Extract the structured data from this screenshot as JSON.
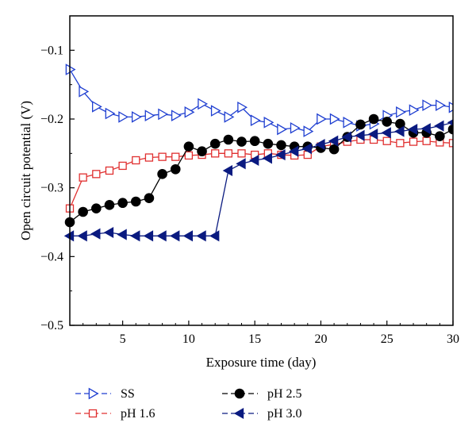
{
  "chart_data": {
    "type": "line",
    "xlabel": "Exposure time (day)",
    "ylabel": "Open circuit potential (V)",
    "xlim": [
      1,
      30
    ],
    "ylim": [
      -0.5,
      -0.05
    ],
    "xticks": [
      5,
      10,
      15,
      20,
      25,
      30
    ],
    "yticks": [
      -0.5,
      -0.4,
      -0.3,
      -0.2,
      -0.1
    ],
    "ytick_labels": [
      "−0.5",
      "−0.4",
      "−0.3",
      "−0.2",
      "−0.1"
    ],
    "grid": false,
    "legend_position": "below plot",
    "series": [
      {
        "name": "SS",
        "marker": "triangle-right-open",
        "color": "#1f3fd1",
        "x": [
          1,
          2,
          3,
          4,
          5,
          6,
          7,
          8,
          9,
          10,
          11,
          12,
          13,
          14,
          15,
          16,
          17,
          18,
          19,
          20,
          21,
          22,
          23,
          24,
          25,
          26,
          27,
          28,
          29,
          30
        ],
        "y": [
          -0.128,
          -0.16,
          -0.182,
          -0.192,
          -0.197,
          -0.197,
          -0.195,
          -0.193,
          -0.195,
          -0.19,
          -0.178,
          -0.188,
          -0.197,
          -0.183,
          -0.202,
          -0.205,
          -0.215,
          -0.213,
          -0.218,
          -0.2,
          -0.2,
          -0.205,
          -0.21,
          -0.207,
          -0.195,
          -0.19,
          -0.187,
          -0.18,
          -0.18,
          -0.183
        ]
      },
      {
        "name": "pH 1.6",
        "marker": "square-open",
        "color": "#e03030",
        "x": [
          1,
          2,
          3,
          4,
          5,
          6,
          7,
          8,
          9,
          10,
          11,
          12,
          13,
          14,
          15,
          16,
          17,
          18,
          19,
          20,
          21,
          22,
          23,
          24,
          25,
          26,
          27,
          28,
          29,
          30
        ],
        "y": [
          -0.33,
          -0.285,
          -0.28,
          -0.275,
          -0.268,
          -0.26,
          -0.256,
          -0.255,
          -0.255,
          -0.253,
          -0.252,
          -0.25,
          -0.25,
          -0.25,
          -0.252,
          -0.25,
          -0.252,
          -0.253,
          -0.252,
          -0.24,
          -0.237,
          -0.233,
          -0.23,
          -0.23,
          -0.232,
          -0.235,
          -0.233,
          -0.232,
          -0.234,
          -0.235
        ]
      },
      {
        "name": "pH 2.5",
        "marker": "circle-filled",
        "color": "#000000",
        "x": [
          1,
          2,
          3,
          4,
          5,
          6,
          7,
          8,
          9,
          10,
          11,
          12,
          13,
          14,
          15,
          16,
          17,
          18,
          19,
          20,
          21,
          22,
          23,
          24,
          25,
          26,
          27,
          28,
          29,
          30
        ],
        "y": [
          -0.35,
          -0.335,
          -0.33,
          -0.325,
          -0.322,
          -0.32,
          -0.315,
          -0.28,
          -0.273,
          -0.24,
          -0.247,
          -0.236,
          -0.23,
          -0.233,
          -0.232,
          -0.236,
          -0.238,
          -0.24,
          -0.24,
          -0.242,
          -0.244,
          -0.226,
          -0.208,
          -0.2,
          -0.204,
          -0.207,
          -0.22,
          -0.22,
          -0.225,
          -0.215
        ]
      },
      {
        "name": "pH 3.0",
        "marker": "triangle-left-filled",
        "color": "#0a1a80",
        "x": [
          1,
          2,
          3,
          4,
          5,
          6,
          7,
          8,
          9,
          10,
          11,
          12,
          13,
          14,
          15,
          16,
          17,
          18,
          19,
          20,
          21,
          22,
          23,
          24,
          25,
          26,
          27,
          28,
          29,
          30
        ],
        "y": [
          -0.37,
          -0.37,
          -0.367,
          -0.365,
          -0.368,
          -0.37,
          -0.37,
          -0.37,
          -0.37,
          -0.37,
          -0.37,
          -0.37,
          -0.275,
          -0.265,
          -0.26,
          -0.257,
          -0.252,
          -0.247,
          -0.243,
          -0.237,
          -0.232,
          -0.226,
          -0.224,
          -0.222,
          -0.22,
          -0.218,
          -0.215,
          -0.214,
          -0.21,
          -0.205
        ]
      }
    ]
  }
}
